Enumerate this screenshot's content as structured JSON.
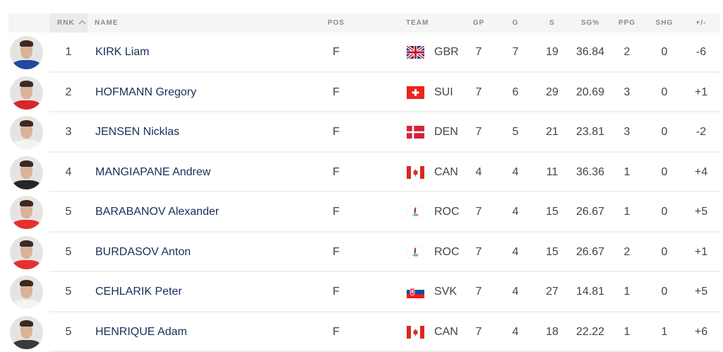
{
  "columns": {
    "rnk": "RNK",
    "name": "NAME",
    "pos": "POS",
    "team": "TEAM",
    "gp": "GP",
    "g": "G",
    "s": "S",
    "sgp": "SG%",
    "ppg": "PPG",
    "shg": "SHG",
    "pm": "+/-"
  },
  "sort": {
    "column": "RNK",
    "direction": "ascending",
    "icon": "chevron-up-icon"
  },
  "rows": [
    {
      "rnk": "1",
      "name": "KIRK Liam",
      "pos": "F",
      "team": "GBR",
      "gp": "7",
      "g": "7",
      "s": "19",
      "sgp": "36.84",
      "ppg": "2",
      "shg": "0",
      "pm": "-6",
      "jersey": "#1f4aa0"
    },
    {
      "rnk": "2",
      "name": "HOFMANN Gregory",
      "pos": "F",
      "team": "SUI",
      "gp": "7",
      "g": "6",
      "s": "29",
      "sgp": "20.69",
      "ppg": "3",
      "shg": "0",
      "pm": "+1",
      "jersey": "#d8262c"
    },
    {
      "rnk": "3",
      "name": "JENSEN Nicklas",
      "pos": "F",
      "team": "DEN",
      "gp": "7",
      "g": "5",
      "s": "21",
      "sgp": "23.81",
      "ppg": "3",
      "shg": "0",
      "pm": "-2",
      "jersey": "#f4f4f4"
    },
    {
      "rnk": "4",
      "name": "MANGIAPANE Andrew",
      "pos": "F",
      "team": "CAN",
      "gp": "4",
      "g": "4",
      "s": "11",
      "sgp": "36.36",
      "ppg": "1",
      "shg": "0",
      "pm": "+4",
      "jersey": "#262626"
    },
    {
      "rnk": "5",
      "name": "BARABANOV Alexander",
      "pos": "F",
      "team": "ROC",
      "gp": "7",
      "g": "4",
      "s": "15",
      "sgp": "26.67",
      "ppg": "1",
      "shg": "0",
      "pm": "+5",
      "jersey": "#e2322f"
    },
    {
      "rnk": "5",
      "name": "BURDASOV Anton",
      "pos": "F",
      "team": "ROC",
      "gp": "7",
      "g": "4",
      "s": "15",
      "sgp": "26.67",
      "ppg": "2",
      "shg": "0",
      "pm": "+1",
      "jersey": "#e2322f"
    },
    {
      "rnk": "5",
      "name": "CEHLARIK Peter",
      "pos": "F",
      "team": "SVK",
      "gp": "7",
      "g": "4",
      "s": "27",
      "sgp": "14.81",
      "ppg": "1",
      "shg": "0",
      "pm": "+5",
      "jersey": "#f4f4f4"
    },
    {
      "rnk": "5",
      "name": "HENRIQUE Adam",
      "pos": "F",
      "team": "CAN",
      "gp": "7",
      "g": "4",
      "s": "18",
      "sgp": "22.22",
      "ppg": "1",
      "shg": "1",
      "pm": "+6",
      "jersey": "#3a3a3a"
    }
  ]
}
